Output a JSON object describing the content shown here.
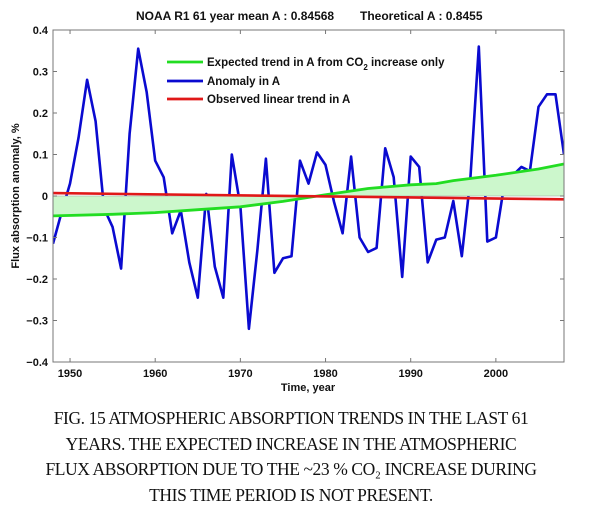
{
  "chart_data": {
    "type": "line",
    "title_left": "NOAA R1 61 year mean A : 0.84568",
    "title_right": "Theoretical A : 0.8455",
    "xlabel": "Time, year",
    "ylabel": "Flux absorption anomaly, %",
    "xlim": [
      1948,
      2008
    ],
    "ylim": [
      -0.4,
      0.4
    ],
    "xticks": [
      1950,
      1960,
      1970,
      1980,
      1990,
      2000
    ],
    "xtick_labels": [
      "1950",
      "1960",
      "1970",
      "1980",
      "1990",
      "2000"
    ],
    "yticks": [
      0.4,
      0.3,
      0.2,
      0.1,
      0,
      -0.1,
      -0.2,
      -0.3,
      -0.4
    ],
    "ytick_labels": [
      "0.4",
      "0.3",
      "0.2",
      "0.1",
      "0",
      "−0.1",
      "−0.2",
      "−0.3",
      "−0.4"
    ],
    "grid": false,
    "legend_position": "top-center",
    "legend": [
      {
        "label_pre": "Expected trend in A from CO",
        "label_sub": "2",
        "label_post": " increase only",
        "color": "#22dd22"
      },
      {
        "label_pre": "Anomaly in A",
        "label_sub": "",
        "label_post": "",
        "color": "#0a0ad0"
      },
      {
        "label_pre": "Observed linear trend in A",
        "label_sub": "",
        "label_post": "",
        "color": "#e01818"
      }
    ],
    "x": [
      1948,
      1949,
      1950,
      1951,
      1952,
      1953,
      1954,
      1955,
      1956,
      1957,
      1958,
      1959,
      1960,
      1961,
      1962,
      1963,
      1964,
      1965,
      1966,
      1967,
      1968,
      1969,
      1970,
      1971,
      1972,
      1973,
      1974,
      1975,
      1976,
      1977,
      1978,
      1979,
      1980,
      1981,
      1982,
      1983,
      1984,
      1985,
      1986,
      1987,
      1988,
      1989,
      1990,
      1991,
      1992,
      1993,
      1994,
      1995,
      1996,
      1997,
      1998,
      1999,
      2000,
      2001,
      2002,
      2003,
      2004,
      2005,
      2006,
      2007,
      2008
    ],
    "series": [
      {
        "name": "Anomaly in A",
        "color": "#0a0ad0",
        "values": [
          -0.115,
          -0.04,
          0.03,
          0.14,
          0.28,
          0.18,
          -0.03,
          -0.075,
          -0.175,
          0.15,
          0.355,
          0.25,
          0.085,
          0.045,
          -0.09,
          -0.035,
          -0.16,
          -0.245,
          0.005,
          -0.17,
          -0.245,
          0.1,
          -0.025,
          -0.32,
          -0.13,
          0.09,
          -0.185,
          -0.15,
          -0.145,
          0.085,
          0.03,
          0.105,
          0.075,
          -0.015,
          -0.09,
          0.095,
          -0.1,
          -0.135,
          -0.125,
          0.115,
          0.045,
          -0.195,
          0.095,
          0.07,
          -0.16,
          -0.105,
          -0.1,
          -0.012,
          -0.145,
          0.04,
          0.36,
          -0.11,
          -0.1,
          0.03,
          0.05,
          0.07,
          0.06,
          0.215,
          0.245,
          0.245,
          0.1
        ]
      },
      {
        "name": "Expected trend in A from CO2 increase only",
        "color": "#22dd22",
        "fill_color": "#ccf7cc",
        "fill_to": 0,
        "x": [
          1948,
          1955,
          1960,
          1965,
          1970,
          1975,
          1980,
          1985,
          1990,
          1993,
          1995,
          2000,
          2005,
          2008
        ],
        "values": [
          -0.048,
          -0.044,
          -0.04,
          -0.033,
          -0.026,
          -0.013,
          0.003,
          0.018,
          0.027,
          0.03,
          0.037,
          0.05,
          0.065,
          0.077
        ]
      },
      {
        "name": "Observed linear trend in A",
        "color": "#e01818",
        "x": [
          1948,
          2008
        ],
        "values": [
          0.007,
          -0.008
        ]
      }
    ]
  },
  "caption": {
    "lines": [
      "FIG. 15 ATMOSPHERIC ABSORPTION TRENDS IN THE LAST 61",
      "YEARS. THE EXPECTED INCREASE IN THE ATMOSPHERIC",
      "FLUX ABSORPTION DUE TO THE ~23 % CO₂ INCREASE DURING",
      "THIS TIME PERIOD IS NOT PRESENT."
    ]
  }
}
